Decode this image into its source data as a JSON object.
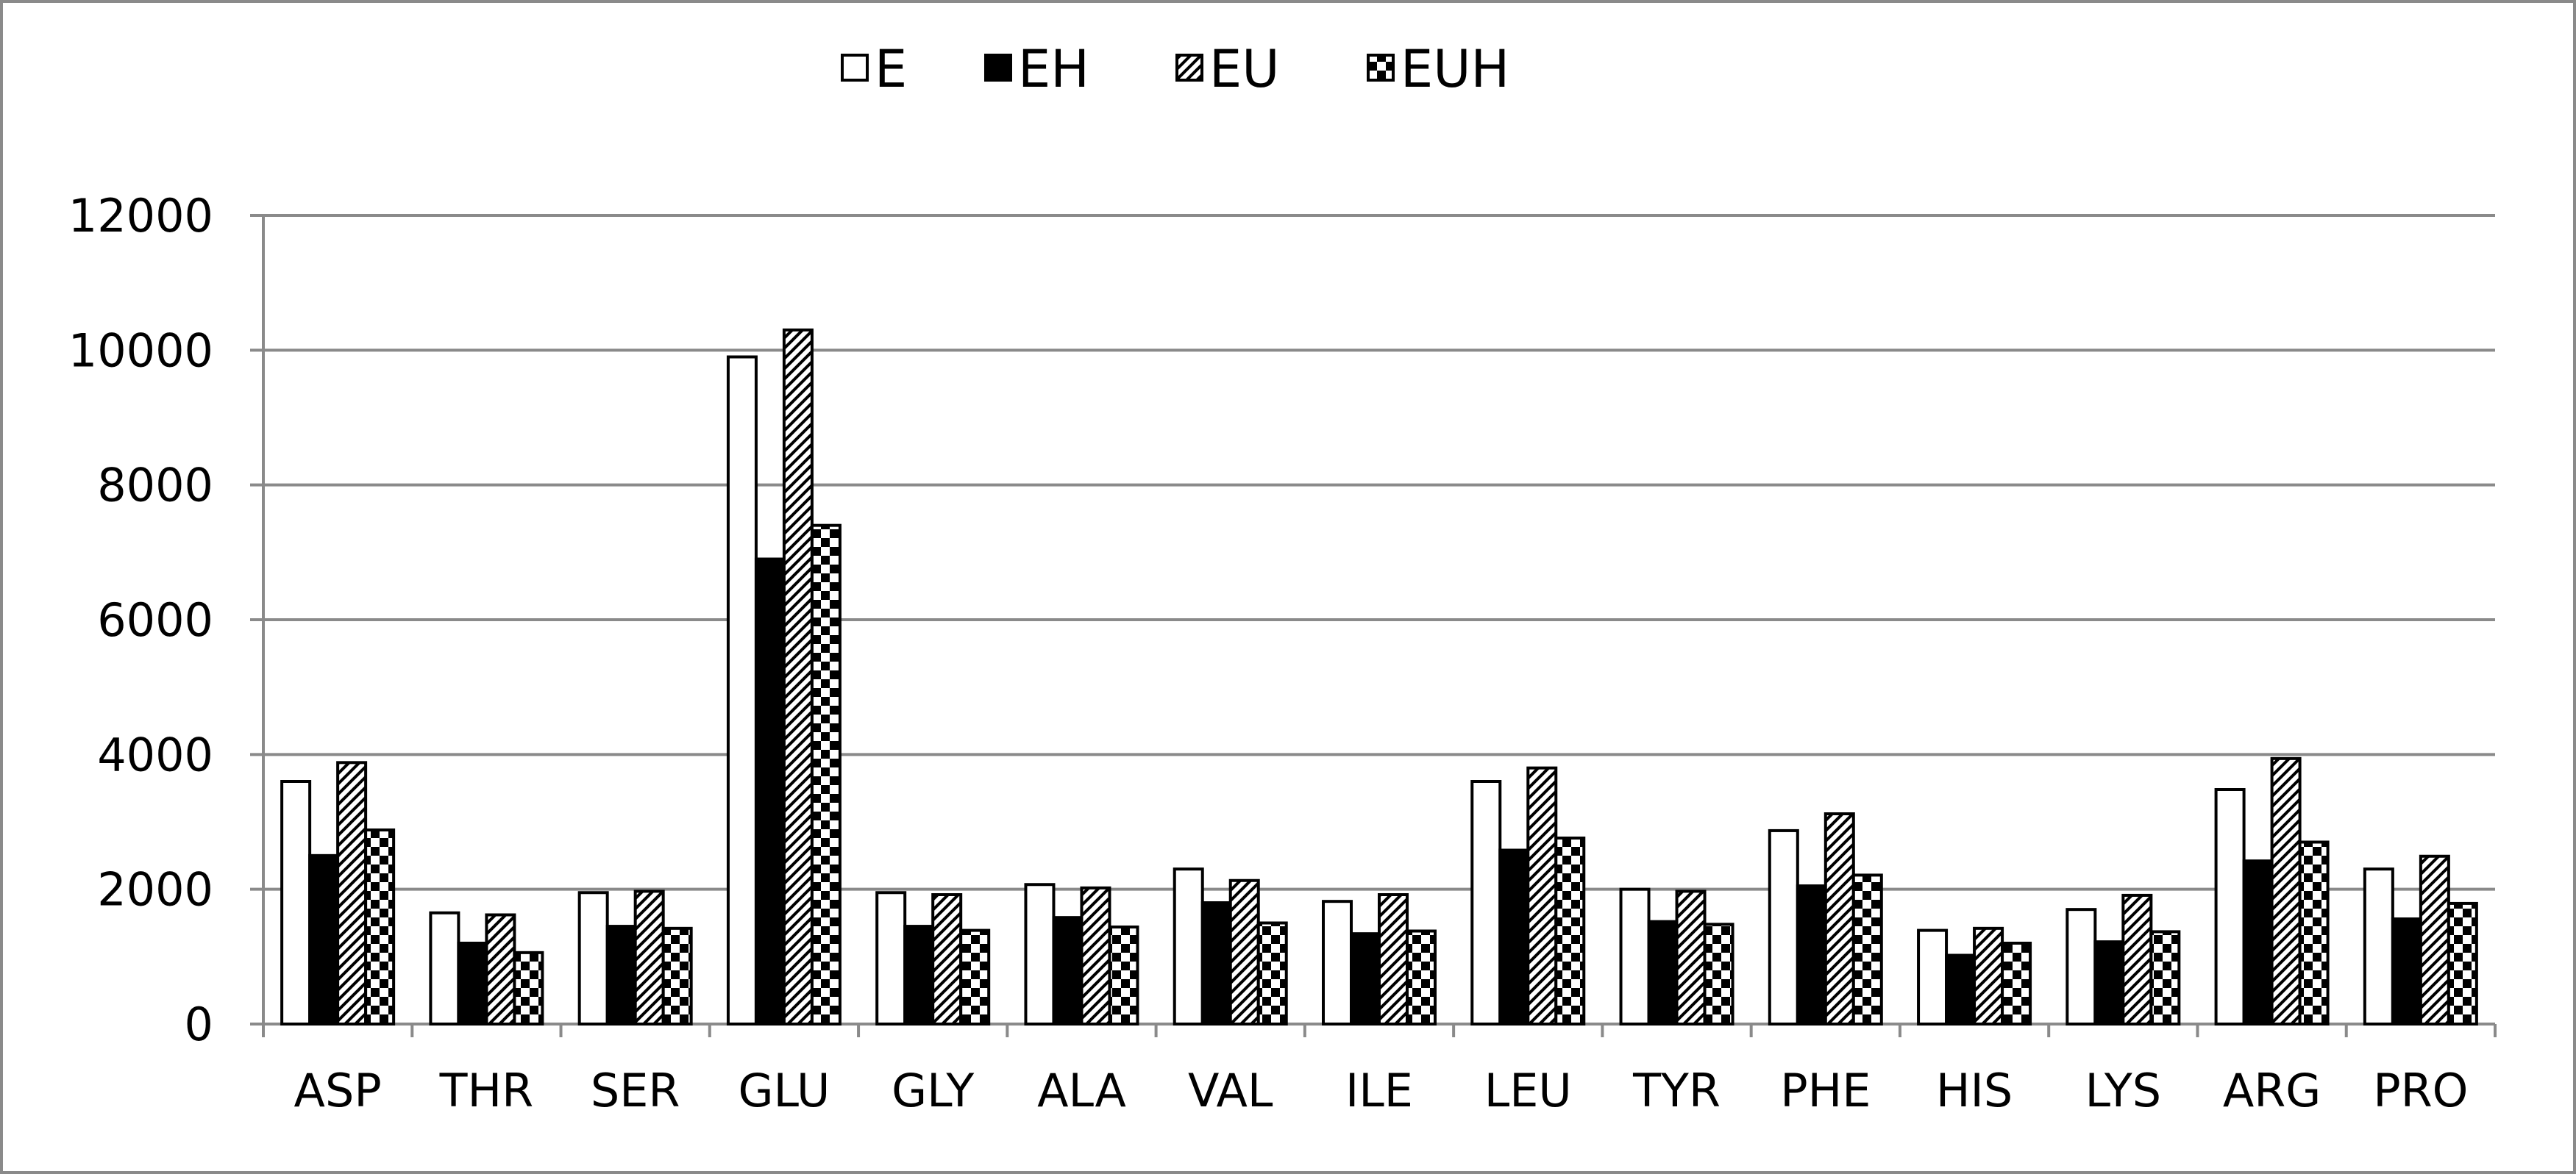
{
  "chart_data": {
    "type": "bar",
    "title": "",
    "xlabel": "",
    "ylabel": "",
    "ylim": [
      0,
      12000
    ],
    "yticks": [
      0,
      2000,
      4000,
      6000,
      8000,
      10000,
      12000
    ],
    "grid": true,
    "legend_position": "top",
    "categories": [
      "ASP",
      "THR",
      "SER",
      "GLU",
      "GLY",
      "ALA",
      "VAL",
      "ILE",
      "LEU",
      "TYR",
      "PHE",
      "HIS",
      "LYS",
      "ARG",
      "PRO"
    ],
    "series": [
      {
        "name": "E",
        "pattern": "white",
        "values": [
          3600,
          1650,
          1950,
          9900,
          1950,
          2070,
          2300,
          1820,
          3600,
          2000,
          2870,
          1390,
          1700,
          3480,
          2300
        ]
      },
      {
        "name": "EH",
        "pattern": "black",
        "values": [
          2500,
          1200,
          1450,
          6900,
          1450,
          1580,
          1800,
          1340,
          2580,
          1520,
          2050,
          1020,
          1220,
          2420,
          1560
        ]
      },
      {
        "name": "EU",
        "pattern": "diagonal",
        "values": [
          3880,
          1620,
          1970,
          10300,
          1920,
          2020,
          2130,
          1920,
          3800,
          1970,
          3120,
          1420,
          1910,
          3940,
          2490
        ]
      },
      {
        "name": "EUH",
        "pattern": "checkerboard",
        "values": [
          2880,
          1060,
          1420,
          7400,
          1390,
          1440,
          1500,
          1380,
          2760,
          1480,
          2210,
          1200,
          1370,
          2700,
          1790
        ]
      }
    ]
  }
}
